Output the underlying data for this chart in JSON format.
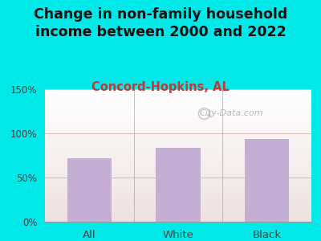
{
  "title": "Change in non-family household\nincome between 2000 and 2022",
  "subtitle": "Concord-Hopkins, AL",
  "categories": [
    "All",
    "White",
    "Black"
  ],
  "values": [
    72,
    84,
    94
  ],
  "bar_color": "#c4aed4",
  "title_fontsize": 12.5,
  "subtitle_fontsize": 10.5,
  "subtitle_color": "#cc3333",
  "title_color": "#111111",
  "background_outer": "#00e8e8",
  "ylim": [
    0,
    150
  ],
  "yticks": [
    0,
    50,
    100,
    150
  ],
  "yticklabels": [
    "0%",
    "50%",
    "100%",
    "150%"
  ],
  "grid_color": "#ddaaaa",
  "watermark": "City-Data.com"
}
